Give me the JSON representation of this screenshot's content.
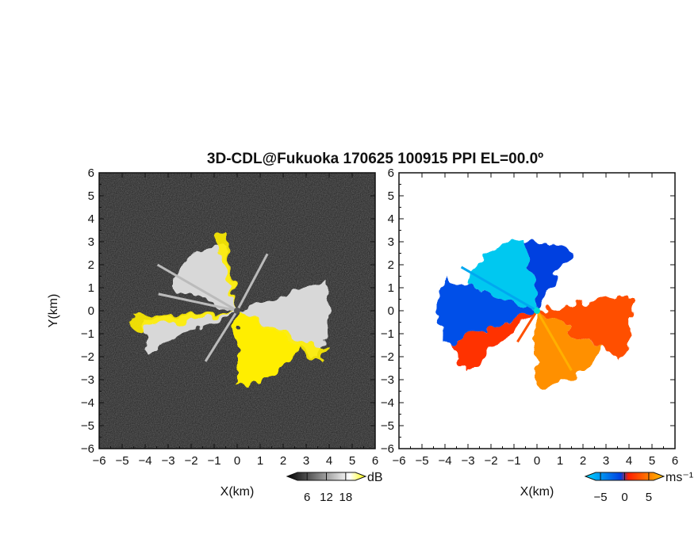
{
  "chart_data": [
    {
      "type": "heatmap",
      "panel": "left",
      "title": "3D-CDL@Fukuoka 170625 100915 PPI EL=00.0º",
      "xlabel": "X(km)",
      "ylabel": "Y(km)",
      "xlim": [
        -6,
        6
      ],
      "ylim": [
        -6,
        6
      ],
      "xticks": [
        "-6",
        "-5",
        "-4",
        "-3",
        "-2",
        "-1",
        "0",
        "1",
        "2",
        "3",
        "4",
        "5",
        "6"
      ],
      "yticks": [
        "-6",
        "-5",
        "-4",
        "-3",
        "-2",
        "-1",
        "0",
        "1",
        "2",
        "3",
        "4",
        "5",
        "6"
      ],
      "colorbar": {
        "unit": "dB",
        "ticks": [
          "6",
          "12",
          "18"
        ],
        "range": [
          3,
          21
        ],
        "colors": [
          "#000000",
          "#ffffff",
          "#ffff00"
        ]
      },
      "background": "#2a2a2a",
      "sectors": [
        {
          "from_deg": 100,
          "to_deg": 160,
          "radius_km": 3.1,
          "level": "gray"
        },
        {
          "from_deg": 185,
          "to_deg": 205,
          "radius_km": 4.2,
          "level": "gray"
        },
        {
          "from_deg": 270,
          "to_deg": 330,
          "radius_km": 3.2,
          "level": "yellow"
        },
        {
          "from_deg": 330,
          "to_deg": 380,
          "radius_km": 4.0,
          "level": "gray"
        }
      ]
    },
    {
      "type": "heatmap",
      "panel": "right",
      "xlabel": "X(km)",
      "xlim": [
        -6,
        6
      ],
      "ylim": [
        -6,
        6
      ],
      "xticks": [
        "-6",
        "-5",
        "-4",
        "-3",
        "-2",
        "-1",
        "0",
        "1",
        "2",
        "3",
        "4",
        "5",
        "6"
      ],
      "yticks": [
        "-6",
        "-5",
        "-4",
        "-3",
        "-2",
        "-1",
        "0",
        "1",
        "2",
        "3",
        "4",
        "5",
        "6"
      ],
      "colorbar": {
        "unit": "ms⁻¹",
        "ticks": [
          "-5",
          "0",
          "5"
        ],
        "range": [
          -6,
          6
        ],
        "colors": [
          "#00d8ff",
          "#0040e0",
          "#ff2000",
          "#ffc000"
        ]
      },
      "sectors": [
        {
          "from_deg": 100,
          "to_deg": 160,
          "radius_km": 3.2,
          "color": "#00c8f0"
        },
        {
          "from_deg": 160,
          "to_deg": 200,
          "radius_km": 4.3,
          "color": "#0050e8"
        },
        {
          "from_deg": 200,
          "to_deg": 220,
          "radius_km": 4.0,
          "color": "#ff3000"
        },
        {
          "from_deg": 270,
          "to_deg": 330,
          "radius_km": 3.3,
          "color": "#ff9000"
        },
        {
          "from_deg": 330,
          "to_deg": 370,
          "radius_km": 4.2,
          "color": "#ff5000"
        },
        {
          "from_deg": 60,
          "to_deg": 100,
          "radius_km": 3.0,
          "color": "#0040e0"
        }
      ]
    }
  ]
}
